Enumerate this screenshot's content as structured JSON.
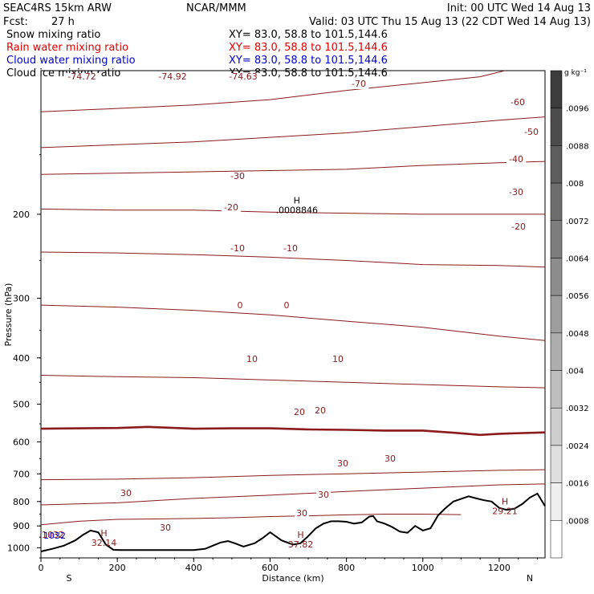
{
  "header": {
    "model": "SEAC4RS 15km ARW",
    "center": "NCAR/MMM",
    "init": "Init: 00 UTC Wed 14 Aug 13",
    "fcst_label": "Fcst:",
    "fcst_value": "27 h",
    "valid": "Valid: 03 UTC Thu 15 Aug 13 (22 CDT Wed 14 Aug 13)"
  },
  "fields": [
    {
      "name": "Snow mixing ratio",
      "xy": "XY=  83.0, 58.8 to 101.5,144.6",
      "color": "#000000"
    },
    {
      "name": "Rain water mixing ratio",
      "xy": "XY=  83.0, 58.8 to 101.5,144.6",
      "color": "#e00000"
    },
    {
      "name": "Cloud water mixing ratio",
      "xy": "XY=  83.0, 58.8 to 101.5,144.6",
      "color": "#0000cc"
    },
    {
      "name": "Cloud ice mixing ratio",
      "xy": "XY=  83.0, 58.8 to 101.5,144.6",
      "color": "#000000"
    }
  ],
  "colorbar": {
    "unit": "g kg⁻¹",
    "labels": [
      ".0096",
      ".0088",
      ".008",
      ".0072",
      ".0064",
      ".0056",
      ".0048",
      ".004",
      ".0032",
      ".0024",
      ".0016",
      ".0008"
    ]
  },
  "chart_data": {
    "type": "line",
    "xlabel": "Distance (km)",
    "ylabel": "Pressure (hPa)",
    "xlim": [
      0,
      1320
    ],
    "ylim": [
      1050,
      100
    ],
    "y_scale": "log",
    "x_ticks": [
      0,
      200,
      400,
      600,
      800,
      1000,
      1200
    ],
    "y_ticks": [
      200,
      300,
      400,
      500,
      600,
      700,
      800,
      900,
      1000
    ],
    "x_endpoints": {
      "left": "S",
      "right": "N"
    },
    "contour_color": "#8b1a1a",
    "isotherms": [
      {
        "level": -70,
        "points": [
          [
            0,
            122
          ],
          [
            200,
            120
          ],
          [
            400,
            118
          ],
          [
            600,
            115
          ],
          [
            800,
            110
          ],
          [
            1000,
            106
          ],
          [
            1150,
            103
          ],
          [
            1215,
            100
          ]
        ]
      },
      {
        "level": -60,
        "points": [
          [
            0,
            145
          ],
          [
            200,
            143
          ],
          [
            400,
            141
          ],
          [
            600,
            138
          ],
          [
            800,
            135
          ],
          [
            1000,
            131
          ],
          [
            1200,
            127
          ],
          [
            1320,
            125
          ]
        ]
      },
      {
        "level": -50,
        "points": [
          [
            0,
            165
          ],
          [
            200,
            164
          ],
          [
            400,
            163
          ],
          [
            600,
            162
          ],
          [
            800,
            161
          ],
          [
            1000,
            158
          ],
          [
            1200,
            156
          ],
          [
            1320,
            155
          ]
        ]
      },
      {
        "level": -40,
        "points": [
          [
            0,
            195
          ],
          [
            200,
            196
          ],
          [
            400,
            196
          ],
          [
            600,
            198
          ],
          [
            800,
            199
          ],
          [
            1000,
            200
          ],
          [
            1200,
            200
          ],
          [
            1320,
            200
          ]
        ]
      },
      {
        "level": -30,
        "points": [
          [
            0,
            240
          ],
          [
            200,
            241
          ],
          [
            400,
            243
          ],
          [
            600,
            246
          ],
          [
            800,
            250
          ],
          [
            1000,
            255
          ],
          [
            1200,
            256
          ],
          [
            1320,
            258
          ]
        ]
      },
      {
        "level": -20,
        "points": [
          [
            0,
            310
          ],
          [
            200,
            313
          ],
          [
            400,
            318
          ],
          [
            600,
            325
          ],
          [
            800,
            335
          ],
          [
            1000,
            345
          ],
          [
            1200,
            360
          ],
          [
            1320,
            368
          ]
        ]
      },
      {
        "level": -10,
        "points": [
          [
            0,
            435
          ],
          [
            200,
            438
          ],
          [
            400,
            440
          ],
          [
            600,
            445
          ],
          [
            800,
            450
          ],
          [
            1000,
            455
          ],
          [
            1200,
            460
          ],
          [
            1320,
            462
          ]
        ]
      },
      {
        "level": 0,
        "points": [
          [
            0,
            563
          ],
          [
            100,
            562
          ],
          [
            200,
            561
          ],
          [
            280,
            558
          ],
          [
            400,
            563
          ],
          [
            500,
            562
          ],
          [
            600,
            562
          ],
          [
            700,
            565
          ],
          [
            800,
            566
          ],
          [
            900,
            568
          ],
          [
            1000,
            568
          ],
          [
            1080,
            574
          ],
          [
            1150,
            580
          ],
          [
            1200,
            577
          ],
          [
            1320,
            573
          ]
        ]
      },
      {
        "level": 10,
        "points": [
          [
            0,
            720
          ],
          [
            200,
            718
          ],
          [
            400,
            713
          ],
          [
            600,
            705
          ],
          [
            800,
            700
          ],
          [
            1000,
            694
          ],
          [
            1200,
            688
          ],
          [
            1320,
            686
          ]
        ]
      },
      {
        "level": 20,
        "points": [
          [
            0,
            813
          ],
          [
            200,
            805
          ],
          [
            400,
            788
          ],
          [
            600,
            776
          ],
          [
            800,
            762
          ],
          [
            1000,
            750
          ],
          [
            1200,
            738
          ],
          [
            1320,
            735
          ]
        ]
      },
      {
        "level": 30,
        "points": [
          [
            0,
            895
          ],
          [
            100,
            880
          ],
          [
            200,
            872
          ],
          [
            300,
            870
          ],
          [
            400,
            868
          ],
          [
            500,
            865
          ],
          [
            600,
            860
          ],
          [
            700,
            857
          ],
          [
            800,
            853
          ],
          [
            900,
            850
          ],
          [
            1000,
            850
          ],
          [
            1100,
            852
          ]
        ]
      }
    ],
    "contour_labels": [
      "-74.72",
      "-74.92",
      "-74.63",
      "-70",
      "-60",
      "-50",
      "-40",
      "-30",
      "-30",
      "-20",
      "-20",
      "-10",
      "-10",
      "0",
      "0",
      "10",
      "10",
      "20",
      "20",
      "30",
      "30",
      "30",
      "30",
      "30",
      "30"
    ],
    "extrema": [
      {
        "symbol": "H",
        "value": ".0008846",
        "x": 670,
        "p": 196
      },
      {
        "symbol": "H",
        "value": "32.14",
        "x": 165,
        "p": 975
      },
      {
        "symbol": "H",
        "value": "37.82",
        "x": 680,
        "p": 983
      },
      {
        "symbol": "H",
        "value": "29.21",
        "x": 1215,
        "p": 837
      }
    ],
    "terrain": {
      "x": [
        0,
        30,
        60,
        90,
        110,
        130,
        150,
        170,
        190,
        210,
        230,
        260,
        300,
        360,
        400,
        430,
        450,
        470,
        490,
        510,
        530,
        560,
        580,
        600,
        630,
        660,
        680,
        700,
        720,
        740,
        760,
        780,
        800,
        820,
        840,
        860,
        870,
        880,
        900,
        920,
        940,
        960,
        980,
        1000,
        1020,
        1040,
        1060,
        1080,
        1100,
        1120,
        1140,
        1160,
        1180,
        1200,
        1220,
        1240,
        1260,
        1280,
        1300,
        1320
      ],
      "p": [
        1018,
        1005,
        990,
        965,
        940,
        920,
        928,
        985,
        1010,
        1011,
        1011,
        1011,
        1011,
        1011,
        1011,
        1005,
        990,
        975,
        968,
        980,
        994,
        978,
        955,
        928,
        965,
        985,
        978,
        945,
        910,
        890,
        880,
        880,
        882,
        890,
        885,
        860,
        858,
        880,
        890,
        905,
        925,
        930,
        900,
        920,
        910,
        855,
        825,
        800,
        790,
        780,
        788,
        795,
        800,
        825,
        833,
        828,
        810,
        785,
        770,
        818
      ]
    },
    "axis_bottom_labels": [
      "1032",
      "1032"
    ]
  }
}
